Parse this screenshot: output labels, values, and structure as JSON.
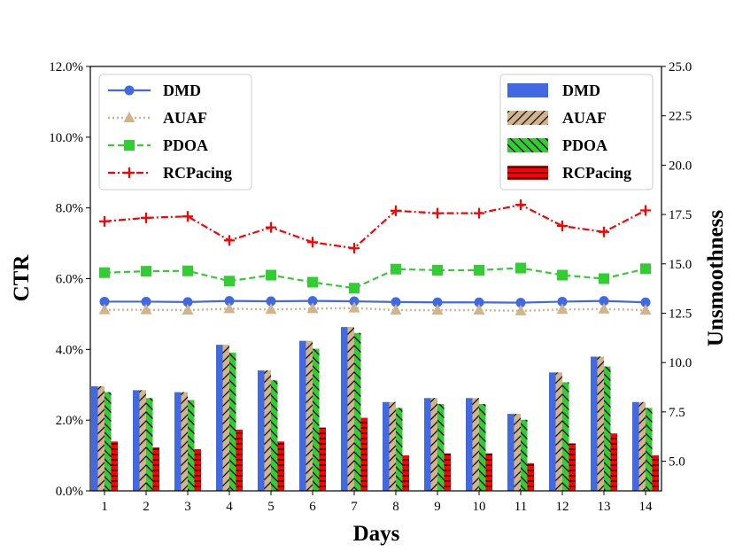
{
  "chart_data": {
    "type": "bar+line",
    "title": "",
    "xlabel": "Days",
    "ylabel_left": "CTR",
    "ylabel_right": "Unsmoothness",
    "categories": [
      "1",
      "2",
      "3",
      "4",
      "5",
      "6",
      "7",
      "8",
      "9",
      "10",
      "11",
      "12",
      "13",
      "14"
    ],
    "left_axis": {
      "ylim": [
        0,
        12
      ],
      "ticks": [
        0,
        2,
        4,
        6,
        8,
        10,
        12
      ],
      "tick_labels": [
        "0.0%",
        "2.0%",
        "4.0%",
        "6.0%",
        "8.0%",
        "10.0%",
        "12.0%"
      ]
    },
    "right_axis": {
      "ylim": [
        3.5,
        25
      ],
      "ticks": [
        5,
        7.5,
        10,
        12.5,
        15,
        17.5,
        20,
        22.5,
        25
      ],
      "tick_labels": [
        "5.0",
        "7.5",
        "10.0",
        "12.5",
        "15.0",
        "17.5",
        "20.0",
        "22.5",
        "25.0"
      ]
    },
    "line_series": [
      {
        "name": "DMD",
        "axis": "left",
        "color": "#4169e1",
        "marker": "circle",
        "dash": "solid",
        "values": [
          5.35,
          5.35,
          5.34,
          5.37,
          5.36,
          5.37,
          5.36,
          5.34,
          5.33,
          5.33,
          5.32,
          5.35,
          5.37,
          5.33
        ]
      },
      {
        "name": "AUAF",
        "axis": "left",
        "color": "#d2b48c",
        "marker": "triangle",
        "dash": "dotted",
        "values": [
          5.12,
          5.12,
          5.11,
          5.15,
          5.13,
          5.15,
          5.17,
          5.11,
          5.11,
          5.11,
          5.09,
          5.13,
          5.14,
          5.11
        ]
      },
      {
        "name": "PDOA",
        "axis": "left",
        "color": "#32cd32",
        "marker": "square",
        "dash": "dashed",
        "values": [
          6.17,
          6.21,
          6.22,
          5.93,
          6.1,
          5.9,
          5.73,
          6.27,
          6.24,
          6.24,
          6.3,
          6.1,
          6.0,
          6.28
        ]
      },
      {
        "name": "RCPacing",
        "axis": "left",
        "color": "#ff0000",
        "marker": "plus",
        "dash": "dashdot",
        "values": [
          7.62,
          7.72,
          7.76,
          7.08,
          7.45,
          7.03,
          6.86,
          7.92,
          7.85,
          7.85,
          8.09,
          7.49,
          7.32,
          7.93
        ]
      }
    ],
    "bar_series": [
      {
        "name": "DMD",
        "axis": "right",
        "color": "#4169e1",
        "hatch": "none",
        "values": [
          8.8,
          8.6,
          8.5,
          10.9,
          9.6,
          11.1,
          11.8,
          8.0,
          8.2,
          8.2,
          7.4,
          9.5,
          10.3,
          8.0
        ]
      },
      {
        "name": "AUAF",
        "axis": "right",
        "color": "#d2b48c",
        "hatch": "diagonal",
        "values": [
          8.8,
          8.6,
          8.5,
          10.9,
          9.6,
          11.1,
          11.8,
          8.0,
          8.2,
          8.2,
          7.4,
          9.5,
          10.3,
          8.0
        ]
      },
      {
        "name": "PDOA",
        "axis": "right",
        "color": "#32cd32",
        "hatch": "backslash",
        "values": [
          8.5,
          8.2,
          8.1,
          10.5,
          9.1,
          10.7,
          11.5,
          7.7,
          7.9,
          7.9,
          7.1,
          9.0,
          9.8,
          7.7
        ]
      },
      {
        "name": "RCPacing",
        "axis": "right",
        "color": "#ff0000",
        "hatch": "horizontal",
        "values": [
          6.0,
          5.7,
          5.6,
          6.6,
          6.0,
          6.7,
          7.2,
          5.3,
          5.4,
          5.4,
          4.9,
          5.9,
          6.4,
          5.3
        ]
      }
    ],
    "legend_left": [
      "DMD",
      "AUAF",
      "PDOA",
      "RCPacing"
    ],
    "legend_right": [
      "DMD",
      "AUAF",
      "PDOA",
      "RCPacing"
    ],
    "legend_left_position": "upper-left",
    "legend_right_position": "upper-right",
    "grid": false
  }
}
